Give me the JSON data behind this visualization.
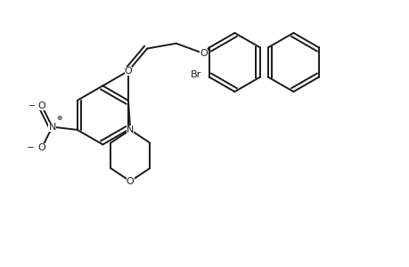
{
  "bg_color": "#ffffff",
  "line_color": "#1a1a1a",
  "lw": 1.4,
  "figsize": [
    4.6,
    3.0
  ],
  "dpi": 100,
  "xlim": [
    0,
    10
  ],
  "ylim": [
    0,
    6.5
  ]
}
